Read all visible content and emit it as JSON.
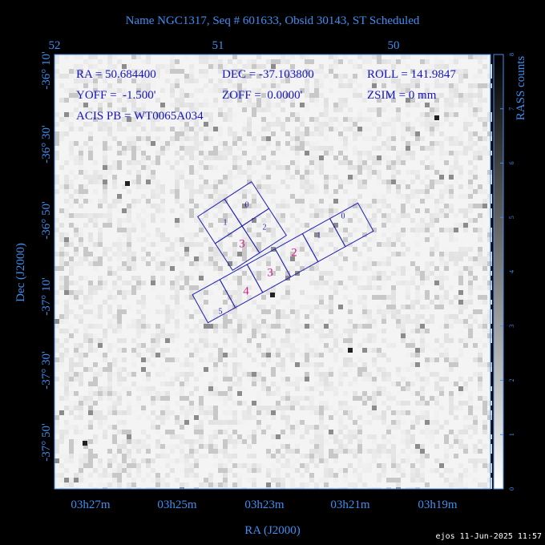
{
  "title": "Name NGC1317, Seq # 601633, Obsid 30143, ST Scheduled",
  "top_axis": {
    "labels": [
      "52",
      "51",
      "50"
    ]
  },
  "x_axis": {
    "label": "RA (J2000)",
    "ticks": [
      "03h27m",
      "03h25m",
      "03h23m",
      "03h21m",
      "03h19m"
    ]
  },
  "y_axis": {
    "label": "Dec (J2000)",
    "ticks": [
      "-36° 10'",
      "-36° 30'",
      "-36° 50'",
      "-37° 10'",
      "-37° 30'",
      "-37° 50'"
    ]
  },
  "info": [
    "RA = 50.684400",
    "DEC = -37.103800",
    "ROLL = 141.9847",
    "YOFF =  -1.500'",
    "ZOFF =  0.0000'",
    "ZSIM = 0 mm",
    "ACIS PB = WT0065A034"
  ],
  "colorbar": {
    "label": "RASS counts",
    "ticks": [
      0,
      1,
      2,
      3,
      4,
      5,
      6,
      7,
      8
    ]
  },
  "acis_i": {
    "chips": [
      "0",
      "1",
      "2",
      "3"
    ]
  },
  "acis_s": {
    "chips": [
      "0",
      "1",
      "2",
      "3",
      "4",
      "5"
    ]
  },
  "footer": "ejos 11-Jun-2025 11:57"
}
